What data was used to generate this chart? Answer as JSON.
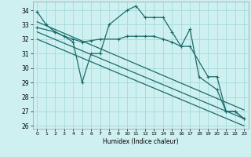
{
  "xlabel": "Humidex (Indice chaleur)",
  "ylabel": "",
  "background_color": "#cff0f0",
  "grid_color": "#aadddd",
  "line_color": "#1a6b6b",
  "xlim": [
    -0.5,
    23.5
  ],
  "ylim": [
    25.8,
    34.6
  ],
  "yticks": [
    26,
    27,
    28,
    29,
    30,
    31,
    32,
    33,
    34
  ],
  "xticks": [
    0,
    1,
    2,
    3,
    4,
    5,
    6,
    7,
    8,
    9,
    10,
    11,
    12,
    13,
    14,
    15,
    16,
    17,
    18,
    19,
    20,
    21,
    22,
    23
  ],
  "line1_x": [
    0,
    1,
    2,
    3,
    4,
    5,
    6,
    7,
    8,
    10,
    11,
    12,
    13,
    14,
    15,
    16,
    17,
    18,
    20,
    21,
    22,
    23
  ],
  "line1_y": [
    33.9,
    33.0,
    32.5,
    32.2,
    31.8,
    29.0,
    31.0,
    31.0,
    33.0,
    34.0,
    34.3,
    33.5,
    33.5,
    33.5,
    32.5,
    31.5,
    32.7,
    29.4,
    28.5,
    27.0,
    27.0,
    26.5
  ],
  "line2_x": [
    0,
    2,
    3,
    4,
    5,
    6,
    7,
    9,
    10,
    11,
    12,
    13,
    14,
    15,
    16,
    17,
    19,
    20,
    21,
    22,
    23
  ],
  "line2_y": [
    32.8,
    32.5,
    32.2,
    32.0,
    31.8,
    31.9,
    32.0,
    32.0,
    32.2,
    32.2,
    32.2,
    32.2,
    32.0,
    31.8,
    31.5,
    31.5,
    29.4,
    29.4,
    27.0,
    27.0,
    26.5
  ],
  "line3_x": [
    0,
    23
  ],
  "line3_y": [
    33.2,
    27.1
  ],
  "line4_x": [
    0,
    23
  ],
  "line4_y": [
    32.5,
    26.5
  ],
  "line5_x": [
    0,
    23
  ],
  "line5_y": [
    32.0,
    26.0
  ]
}
